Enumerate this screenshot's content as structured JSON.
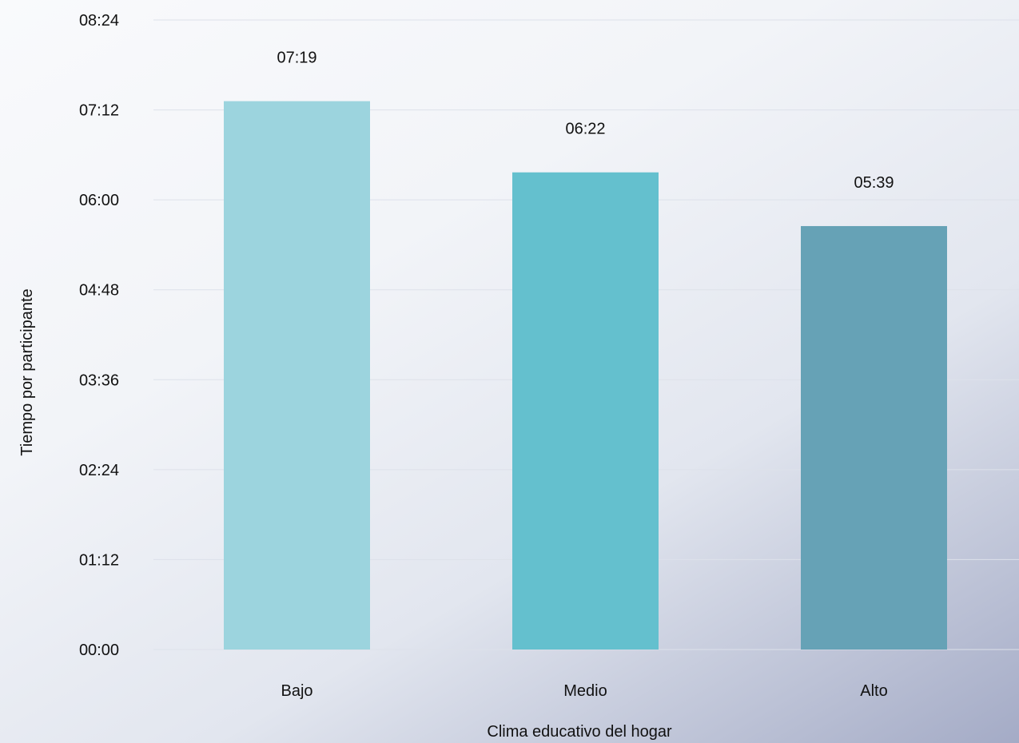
{
  "chart_data": {
    "type": "bar",
    "title": "",
    "xlabel": "Clima educativo del hogar",
    "ylabel": "Tiempo por participante",
    "categories": [
      "Bajo",
      "Medio",
      "Alto"
    ],
    "values": [
      439,
      382,
      339
    ],
    "value_labels": [
      "07:19",
      "06:22",
      "05:39"
    ],
    "value_unit": "minutes (mm:ss read as hh:mm ticks)",
    "ylim": [
      0,
      504
    ],
    "yticks": [
      0,
      72,
      144,
      216,
      288,
      360,
      432,
      504
    ],
    "ytick_labels": [
      "00:00",
      "01:12",
      "02:24",
      "03:36",
      "04:48",
      "06:00",
      "07:12",
      "08:24"
    ],
    "colors": [
      "#9cd4de",
      "#64c0ce",
      "#66a2b6"
    ],
    "grid": true,
    "legend": "none"
  }
}
